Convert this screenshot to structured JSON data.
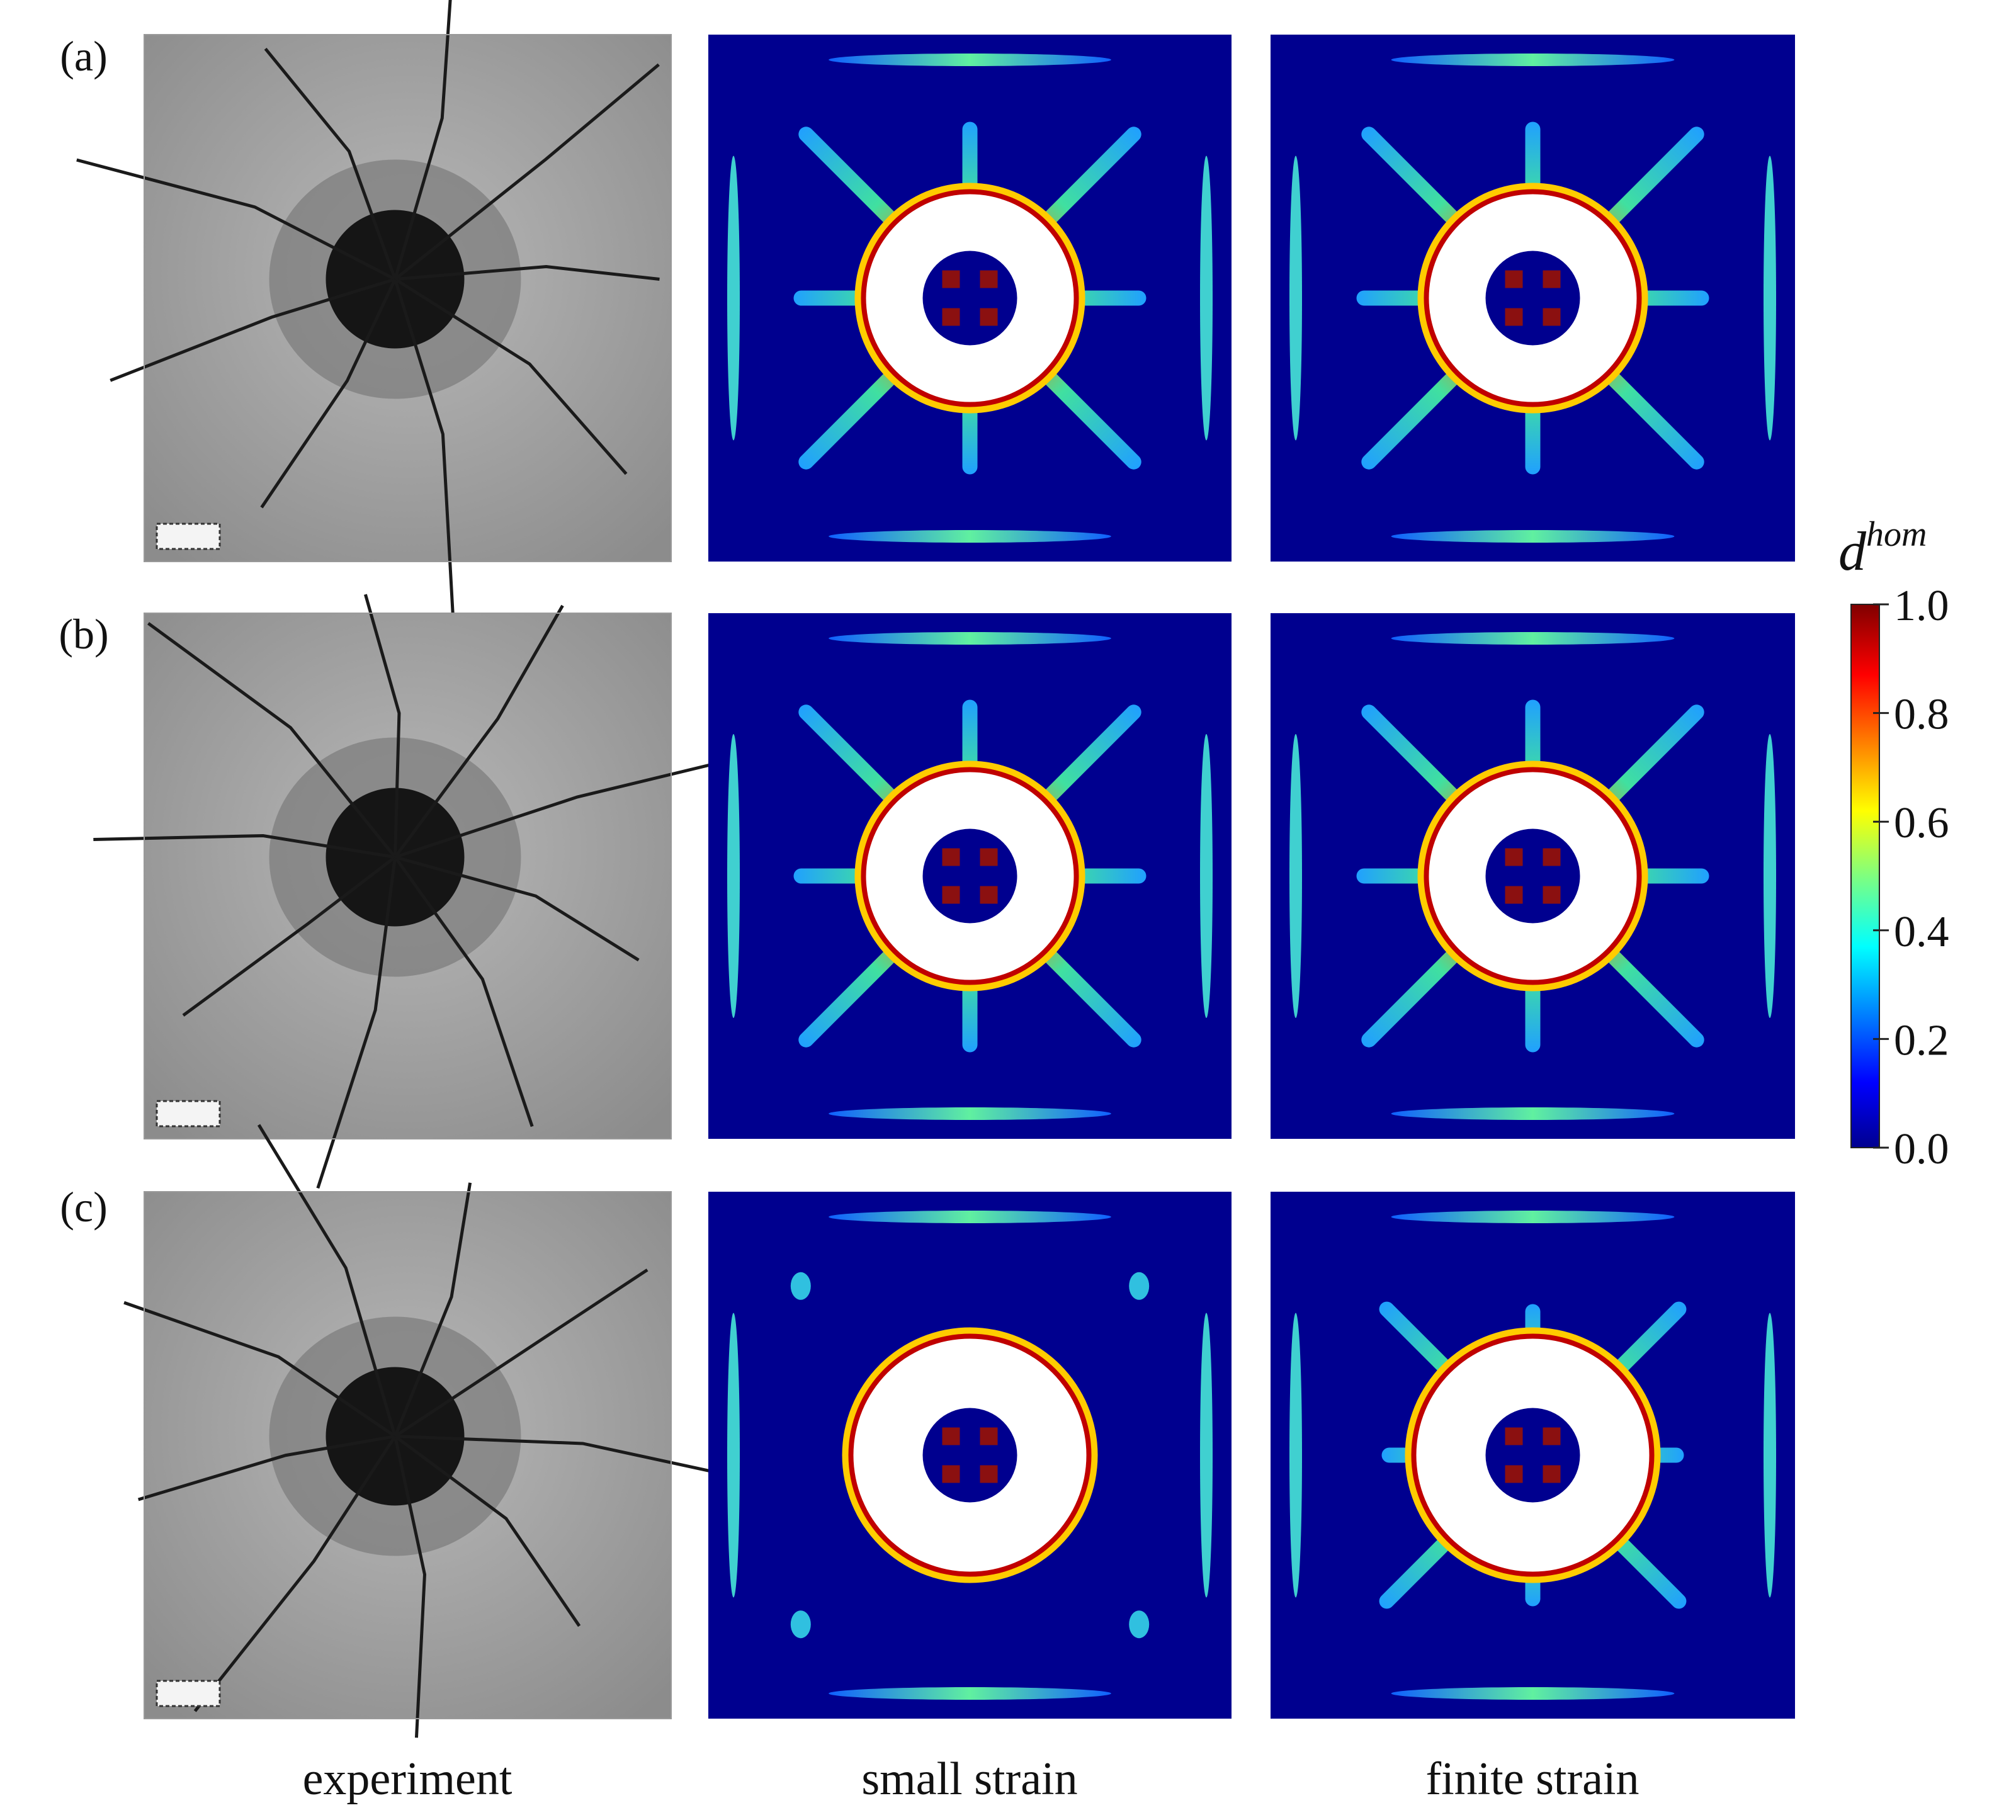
{
  "row_labels": [
    "(a)",
    "(b)",
    "(c)"
  ],
  "column_labels": [
    "experiment",
    "small strain",
    "finite strain"
  ],
  "colorbar": {
    "label": "d",
    "label_superscript": "hom",
    "range": [
      0,
      1
    ],
    "ticks": [
      {
        "value": 0,
        "label": "0.0"
      },
      {
        "value": 0.2,
        "label": "0.2"
      },
      {
        "value": 0.4,
        "label": "0.4"
      },
      {
        "value": 0.6,
        "label": "0.6"
      },
      {
        "value": 0.8,
        "label": "0.8"
      },
      {
        "value": 1,
        "label": "1.0"
      }
    ]
  }
}
